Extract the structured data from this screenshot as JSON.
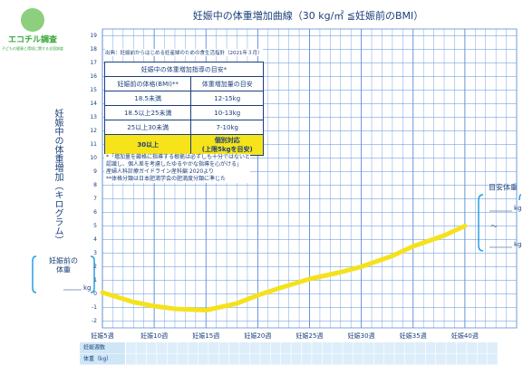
{
  "logo": {
    "name": "エコチル調査",
    "subtitle": "子どもの健康と環境に関する全国調査"
  },
  "chart_data": {
    "type": "line",
    "title": "妊娠中の体重増加曲線（30 kg/㎡ ≦妊娠前のBMI）",
    "y_label": "妊娠中の体重増加（キログラム）",
    "x": [
      5,
      8,
      10,
      12,
      15,
      18,
      20,
      22,
      25,
      28,
      30,
      33,
      35,
      38,
      40
    ],
    "series": [
      {
        "name": "体重増加曲線",
        "color": "#f5e21b",
        "values": [
          0.1,
          -0.6,
          -0.9,
          -1.1,
          -1.2,
          -0.7,
          -0.1,
          0.4,
          1.1,
          1.6,
          2.0,
          2.8,
          3.5,
          4.3,
          5.0
        ]
      }
    ],
    "xlim": [
      5,
      45
    ],
    "ylim": [
      -2.5,
      19.5
    ],
    "xticks": [
      {
        "value": 5,
        "label": "妊娠5週"
      },
      {
        "value": 10,
        "label": "妊娠10週"
      },
      {
        "value": 15,
        "label": "妊娠15週"
      },
      {
        "value": 20,
        "label": "妊娠20週"
      },
      {
        "value": 25,
        "label": "妊娠25週"
      },
      {
        "value": 30,
        "label": "妊娠30週"
      },
      {
        "value": 35,
        "label": "妊娠35週"
      },
      {
        "value": 40,
        "label": "妊娠40週"
      }
    ],
    "yticks": [
      -2,
      -1,
      0,
      1,
      2,
      3,
      4,
      5,
      6,
      7,
      8,
      9,
      10,
      11,
      12,
      13,
      14,
      15,
      16,
      17,
      18,
      19
    ],
    "grid": true,
    "grid_color": "#5b8fd8"
  },
  "source": "出典：妊娠前からはじめる妊産婦のための食生活指針（2021年３月）",
  "guide_table": {
    "title": "妊娠中の体重増加指導の目安*",
    "columns": [
      "妊娠前の体格(BMI)**",
      "体重増加量の目安"
    ],
    "rows": [
      [
        "18.5未満",
        "12-15kg"
      ],
      [
        "18.5以上25未満",
        "10-13kg"
      ],
      [
        "25以上30未満",
        "7-10kg"
      ],
      [
        "30以上",
        "個別対応\n(上限5kgを目安)"
      ]
    ]
  },
  "notes": [
    "*「増加量を厳格に指導する根拠は必ずしも十分ではないと",
    "認識し、個人差を考慮したゆるやかな指導を心がける」",
    "産婦人科診療ガイドライン産科編 2020より",
    "**体格分類は日本肥満学会の肥満度分類に準じた"
  ],
  "left_box": {
    "lines": [
      "妊娠前の",
      "体重"
    ],
    "unit": "kg"
  },
  "right_box": {
    "title": "目安体重",
    "unit": "kg",
    "tilde": "〜",
    "unit2": "kg"
  },
  "bottom_table": {
    "rows": [
      "妊娠週数",
      "体重（kg）"
    ]
  }
}
